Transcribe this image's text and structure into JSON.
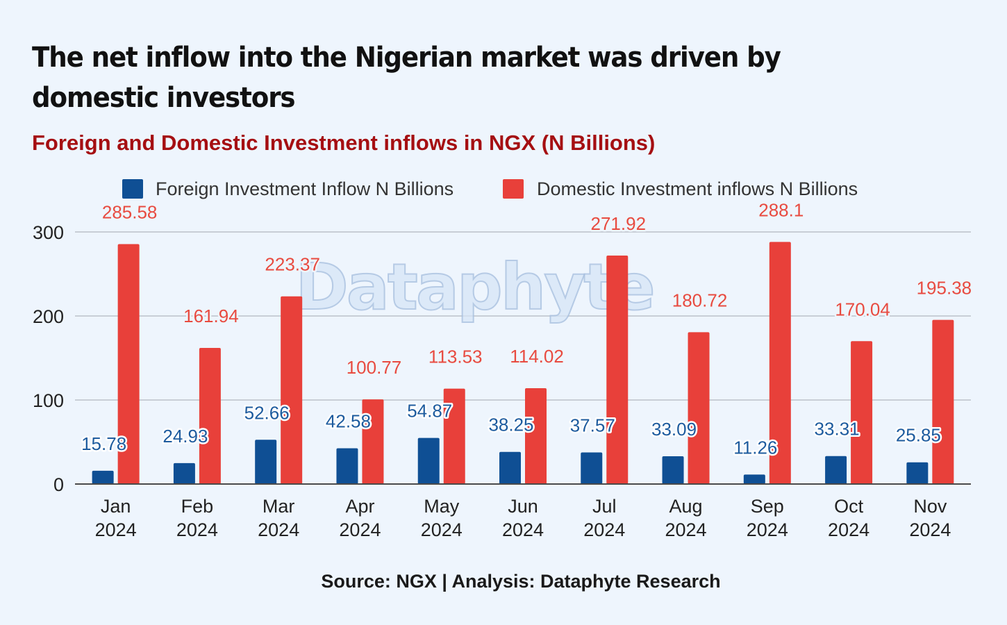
{
  "headline": "The net inflow into the Nigerian market was driven by domestic investors",
  "watermark": "Dataphyte",
  "source": "Source: NGX | Analysis: Dataphyte Research",
  "colors": {
    "foreign": "#0f4f94",
    "domestic": "#e8403a",
    "foreign_label": "#1d5b9e",
    "domestic_label": "#e84b40",
    "grid": "#c8ced6",
    "axis": "#4a4a4a"
  },
  "chart_data": {
    "type": "bar",
    "title": "Foreign and Domestic Investment inflows in NGX (N Billions)",
    "xlabel": "",
    "ylabel": "",
    "ylim": [
      0,
      300
    ],
    "yticks": [
      0,
      100,
      200,
      300
    ],
    "grid": true,
    "legend_position": "top",
    "categories": [
      [
        "Jan",
        "2024"
      ],
      [
        "Feb",
        "2024"
      ],
      [
        "Mar",
        "2024"
      ],
      [
        "Apr",
        "2024"
      ],
      [
        "May",
        "2024"
      ],
      [
        "Jun",
        "2024"
      ],
      [
        "Jul",
        "2024"
      ],
      [
        "Aug",
        "2024"
      ],
      [
        "Sep",
        "2024"
      ],
      [
        "Oct",
        "2024"
      ],
      [
        "Nov",
        "2024"
      ]
    ],
    "series": [
      {
        "name": "Foreign Investment Inflow N Billions",
        "values": [
          15.78,
          24.93,
          52.66,
          42.58,
          54.87,
          38.25,
          37.57,
          33.09,
          11.26,
          33.31,
          25.85
        ]
      },
      {
        "name": "Domestic Investment inflows N Billions",
        "values": [
          285.58,
          161.94,
          223.37,
          100.77,
          113.53,
          114.02,
          271.92,
          180.72,
          288.1,
          170.04,
          195.38
        ]
      }
    ]
  }
}
